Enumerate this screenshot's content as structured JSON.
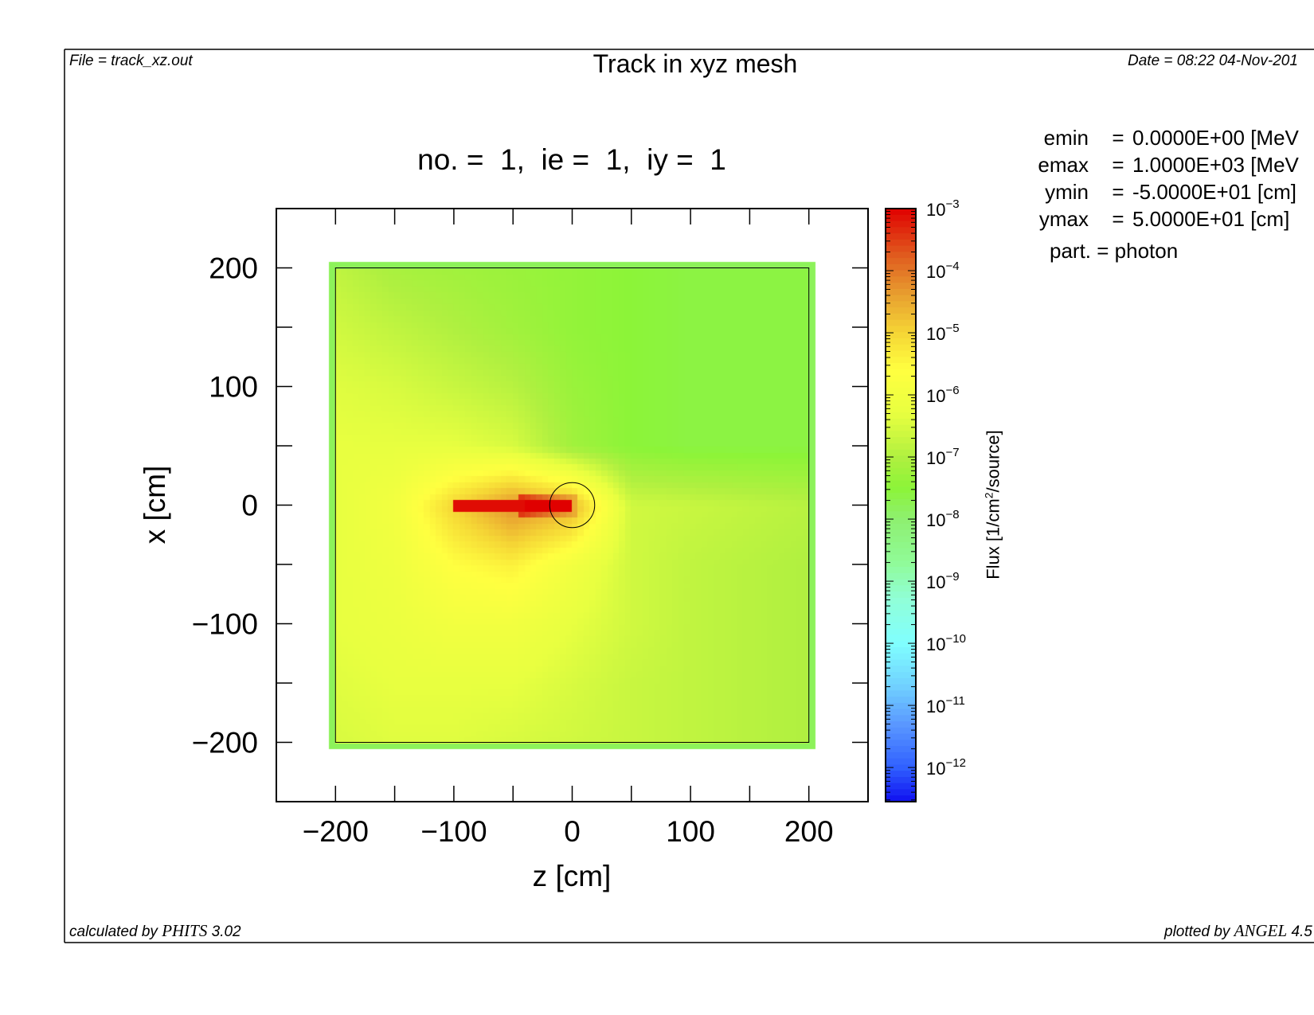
{
  "header": {
    "file": "File = track_xz.out",
    "title": "Track in xyz mesh",
    "date": "Date = 08:22 04-Nov-201"
  },
  "footer": {
    "calculated_prefix": "calculated by ",
    "calculated_code": "PHITS",
    "calculated_version": " 3.02",
    "plotted_prefix": "plotted by ",
    "plotted_code": "ANGEL",
    "plotted_version": " 4.5"
  },
  "params": [
    {
      "label": "emin",
      "eq": "=",
      "value": "0.0000E+00 [MeV"
    },
    {
      "label": "emax",
      "eq": "=",
      "value": "1.0000E+03 [MeV"
    },
    {
      "label": "ymin",
      "eq": "=",
      "value": "-5.0000E+01 [cm]"
    },
    {
      "label": "ymax",
      "eq": "=",
      "value": "5.0000E+01 [cm]"
    }
  ],
  "particle": "part. = photon",
  "chart_data": {
    "type": "heatmap",
    "title": "no. =  1,  ie =  1,  iy =  1",
    "xlabel": "z [cm]",
    "ylabel": "x [cm]",
    "xlim": [
      -250,
      250
    ],
    "ylim": [
      -250,
      250
    ],
    "xticks": [
      -200,
      -150,
      -100,
      -50,
      0,
      50,
      100,
      150,
      200
    ],
    "xtick_labels": [
      "−200",
      "−100",
      "0",
      "100",
      "200"
    ],
    "xtick_label_values": [
      -200,
      -100,
      0,
      100,
      200
    ],
    "yticks": [
      -200,
      -150,
      -100,
      -50,
      0,
      50,
      100,
      150,
      200
    ],
    "ytick_labels": [
      "200",
      "100",
      "0",
      "−100",
      "−200"
    ],
    "ytick_label_values": [
      200,
      100,
      0,
      -100,
      -200
    ],
    "colorbar": {
      "label": "Flux [1/cm²/source]",
      "label_main": "Flux [1/cm",
      "label_sup": "2",
      "label_end": "/source]",
      "scale": "log",
      "log10_range": [
        -12.55,
        -3
      ],
      "tick_exponents": [
        "−3",
        "−4",
        "−5",
        "−6",
        "−7",
        "−8",
        "−9",
        "−10",
        "−11",
        "−12"
      ],
      "tick_values": [
        -3,
        -4,
        -5,
        -6,
        -7,
        -8,
        -9,
        -10,
        -11,
        -12
      ],
      "colormap": [
        [
          -12.55,
          "#1010f0"
        ],
        [
          -12,
          "#3060ff"
        ],
        [
          -11.3,
          "#5a98ff"
        ],
        [
          -10.7,
          "#70d0ff"
        ],
        [
          -10,
          "#80ffff"
        ],
        [
          -9.3,
          "#90ffd8"
        ],
        [
          -8.7,
          "#90fb98"
        ],
        [
          -8,
          "#8ef070"
        ],
        [
          -7.5,
          "#8cf438"
        ],
        [
          -7,
          "#b0f040"
        ],
        [
          -6.3,
          "#e8ff40"
        ],
        [
          -5.6,
          "#ffff40"
        ],
        [
          -5,
          "#f5d535"
        ],
        [
          -4.4,
          "#e8a030"
        ],
        [
          -3.8,
          "#e06020"
        ],
        [
          -3,
          "#e00000"
        ]
      ]
    },
    "grid_z": [
      -200,
      -150,
      -100,
      -50,
      0,
      50,
      100,
      150,
      200
    ],
    "grid_x": [
      200,
      150,
      100,
      50,
      0,
      -50,
      -100,
      -150,
      -200
    ],
    "log10_flux": [
      [
        -6.8,
        -7.1,
        -7.2,
        -7.3,
        -7.4,
        -7.5,
        -7.6,
        -7.6,
        -7.6
      ],
      [
        -6.6,
        -6.8,
        -7.0,
        -7.2,
        -7.4,
        -7.5,
        -7.6,
        -7.6,
        -7.6
      ],
      [
        -6.4,
        -6.5,
        -6.7,
        -6.9,
        -7.3,
        -7.5,
        -7.6,
        -7.6,
        -7.6
      ],
      [
        -6.3,
        -6.3,
        -6.3,
        -6.5,
        -7.2,
        -7.5,
        -7.6,
        -7.6,
        -7.6
      ],
      [
        -6.3,
        -6.0,
        -5.0,
        -4.2,
        -4.6,
        -6.6,
        -6.7,
        -6.8,
        -6.9
      ],
      [
        -6.3,
        -6.1,
        -5.6,
        -5.4,
        -6.0,
        -6.6,
        -6.8,
        -6.9,
        -7.0
      ],
      [
        -6.3,
        -6.2,
        -6.0,
        -6.0,
        -6.3,
        -6.6,
        -6.8,
        -6.9,
        -7.0
      ],
      [
        -6.4,
        -6.3,
        -6.3,
        -6.3,
        -6.5,
        -6.7,
        -6.8,
        -6.9,
        -7.0
      ],
      [
        -6.5,
        -6.4,
        -6.4,
        -6.5,
        -6.6,
        -6.7,
        -6.8,
        -6.9,
        -7.0
      ]
    ],
    "source_track": {
      "z_range": [
        -100,
        0
      ],
      "x_halfwidth": 5,
      "log10_flux": -3.1
    },
    "mesh_extent": [
      -205,
      205
    ],
    "annotations": {
      "region_box": [
        -200,
        200
      ],
      "circle_center": [
        0,
        0
      ],
      "circle_radius": 19
    }
  }
}
